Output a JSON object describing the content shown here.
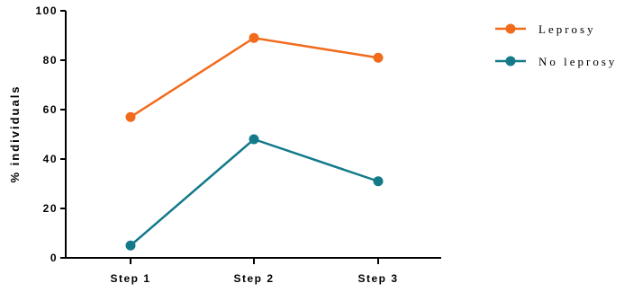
{
  "chart_data": {
    "type": "line",
    "title": "",
    "xlabel": "",
    "ylabel": "% individuals",
    "categories": [
      "Step 1",
      "Step 2",
      "Step 3"
    ],
    "ylim": [
      0,
      100
    ],
    "yticks": [
      0,
      20,
      40,
      60,
      80,
      100
    ],
    "grid": false,
    "legend_position": "top-right",
    "series": [
      {
        "name": "Leprosy",
        "values": [
          57,
          89,
          81
        ],
        "color": "#f26b1d"
      },
      {
        "name": "No leprosy",
        "values": [
          5,
          48,
          31
        ],
        "color": "#147a8a"
      }
    ]
  }
}
